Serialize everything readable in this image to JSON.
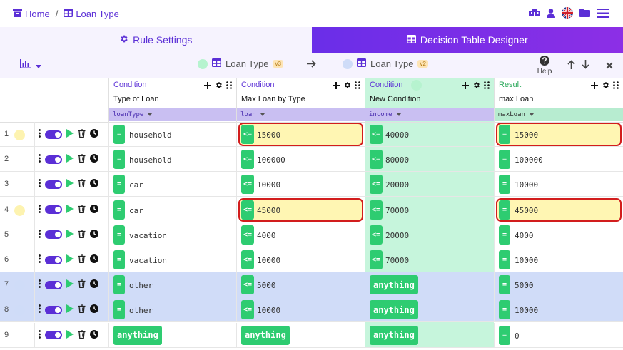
{
  "breadcrumb": {
    "home": "Home",
    "separator": "/",
    "current": "Loan Type"
  },
  "top_icons": [
    "boxes-icon",
    "user-icon",
    "uk-flag-icon",
    "folder-icon",
    "menu-icon"
  ],
  "tabs": [
    {
      "label": "Rule Settings",
      "icon": "gear-icon",
      "active": false
    },
    {
      "label": "Decision Table Designer",
      "icon": "table-icon",
      "active": true
    }
  ],
  "toolbar": {
    "source": {
      "label": "Loan Type",
      "version": "v3",
      "dot_color": "#b6f3cf"
    },
    "target": {
      "label": "Loan Type",
      "version": "v2",
      "dot_color": "#cfdcf8"
    },
    "help": "Help"
  },
  "columns": [
    {
      "kind": "Condition",
      "title": "Type of Loan",
      "field": "loanType",
      "field_bg": "#c9bff2",
      "type": "condition"
    },
    {
      "kind": "Condition",
      "title": "Max Loan by Type",
      "field": "loan",
      "field_bg": "#c9bff2",
      "type": "condition"
    },
    {
      "kind": "Condition",
      "title": "New Condition",
      "field": "income",
      "field_bg": "#c9bff2",
      "type": "condition",
      "bg": "#c6f5dc",
      "marker": true
    },
    {
      "kind": "Result",
      "title": "max Loan",
      "field": "maxLoan",
      "field_bg": "#b7ecd0",
      "type": "result"
    }
  ],
  "rows": [
    {
      "num": "1",
      "dot": "#fdf3b0",
      "bg": "#ffffff",
      "cells": [
        [
          "=",
          "household"
        ],
        [
          "<=",
          "15000"
        ],
        [
          "<=",
          "40000"
        ],
        [
          "=",
          "15000"
        ]
      ],
      "hl": [
        1,
        3
      ]
    },
    {
      "num": "2",
      "dot": "",
      "bg": "#ffffff",
      "cells": [
        [
          "=",
          "household"
        ],
        [
          "<=",
          "100000"
        ],
        [
          "<=",
          "80000"
        ],
        [
          "=",
          "100000"
        ]
      ],
      "hl": []
    },
    {
      "num": "3",
      "dot": "",
      "bg": "#ffffff",
      "cells": [
        [
          "=",
          "car"
        ],
        [
          "<=",
          "10000"
        ],
        [
          "<=",
          "20000"
        ],
        [
          "=",
          "10000"
        ]
      ],
      "hl": []
    },
    {
      "num": "4",
      "dot": "#fdf3b0",
      "bg": "#ffffff",
      "cells": [
        [
          "=",
          "car"
        ],
        [
          "<=",
          "45000"
        ],
        [
          "<=",
          "70000"
        ],
        [
          "=",
          "45000"
        ]
      ],
      "hl": [
        1,
        3
      ]
    },
    {
      "num": "5",
      "dot": "",
      "bg": "#ffffff",
      "cells": [
        [
          "=",
          "vacation"
        ],
        [
          "<=",
          "4000"
        ],
        [
          "<=",
          "20000"
        ],
        [
          "=",
          "4000"
        ]
      ],
      "hl": []
    },
    {
      "num": "6",
      "dot": "",
      "bg": "#ffffff",
      "cells": [
        [
          "=",
          "vacation"
        ],
        [
          "<=",
          "10000"
        ],
        [
          "<=",
          "70000"
        ],
        [
          "=",
          "10000"
        ]
      ],
      "hl": []
    },
    {
      "num": "7",
      "dot": "#cfdcf8",
      "bg": "#d0dcf8",
      "cells": [
        [
          "=",
          "other"
        ],
        [
          "<=",
          "5000"
        ],
        [
          "anything",
          ""
        ],
        [
          "=",
          "5000"
        ]
      ],
      "hl": []
    },
    {
      "num": "8",
      "dot": "#cfdcf8",
      "bg": "#d0dcf8",
      "cells": [
        [
          "=",
          "other"
        ],
        [
          "<=",
          "10000"
        ],
        [
          "anything",
          ""
        ],
        [
          "=",
          "10000"
        ]
      ],
      "hl": []
    },
    {
      "num": "9",
      "dot": "",
      "bg": "#ffffff",
      "cells": [
        [
          "anything",
          ""
        ],
        [
          "anything",
          ""
        ],
        [
          "anything",
          ""
        ],
        [
          "=",
          "0"
        ]
      ],
      "hl": []
    }
  ]
}
